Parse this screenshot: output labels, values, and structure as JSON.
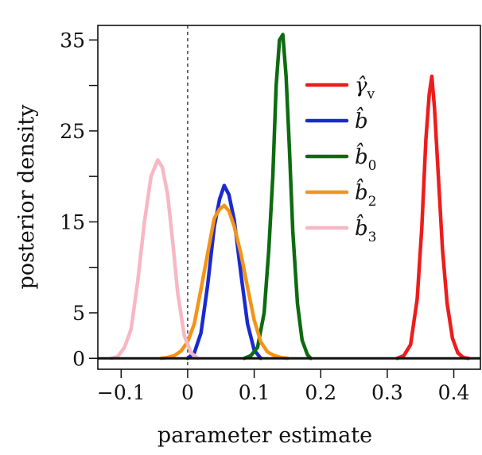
{
  "chart_data": {
    "type": "line",
    "title": "",
    "xlabel": "parameter estimate",
    "ylabel": "posterior density",
    "xlim": [
      -0.135,
      0.44
    ],
    "ylim": [
      -1.2,
      36.6
    ],
    "xticks": [
      -0.1,
      0,
      0.1,
      0.2,
      0.3,
      0.4
    ],
    "xtick_labels": [
      "−0.1",
      "0",
      "0.1",
      "0.2",
      "0.3",
      "0.4"
    ],
    "yticks": [
      0,
      5,
      15,
      25,
      35
    ],
    "ytick_labels": [
      "0",
      "5",
      "15",
      "25",
      "35"
    ],
    "y_minor_ticks": [
      10,
      20,
      30
    ],
    "grid": false,
    "reference_lines": [
      {
        "axis": "x",
        "value": 0,
        "style": "dashed"
      },
      {
        "axis": "y",
        "value": 0,
        "style": "solid"
      }
    ],
    "legend": {
      "position": "top-right",
      "entries": [
        {
          "main": "γ̂",
          "sub": "v",
          "color": "#ee1c1c"
        },
        {
          "main": "b̂",
          "sub": "",
          "color": "#1a2ad0"
        },
        {
          "main": "b̂",
          "sub": "0",
          "color": "#0d6b10"
        },
        {
          "main": "b̂",
          "sub": "2",
          "color": "#f39418"
        },
        {
          "main": "b̂",
          "sub": "3",
          "color": "#f7b7c4"
        }
      ]
    },
    "series": [
      {
        "key": "gamma_v",
        "color": "#ee1c1c",
        "x": [
          0.315,
          0.325,
          0.335,
          0.345,
          0.352,
          0.358,
          0.363,
          0.367,
          0.371,
          0.376,
          0.383,
          0.39,
          0.398,
          0.406,
          0.414,
          0.422
        ],
        "y": [
          0,
          0.3,
          1.5,
          6.5,
          14.5,
          24,
          29,
          31,
          27.5,
          21,
          12,
          6,
          2.2,
          0.6,
          0.1,
          0
        ]
      },
      {
        "key": "b",
        "color": "#1a2ad0",
        "x": [
          0.0,
          0.01,
          0.02,
          0.03,
          0.04,
          0.048,
          0.055,
          0.062,
          0.07,
          0.08,
          0.09,
          0.1,
          0.11
        ],
        "y": [
          0,
          0.6,
          2.8,
          8,
          14.5,
          17.5,
          19,
          18,
          15.2,
          9.3,
          3.8,
          0.9,
          0
        ]
      },
      {
        "key": "b0",
        "color": "#0d6b10",
        "x": [
          0.085,
          0.095,
          0.105,
          0.115,
          0.122,
          0.128,
          0.133,
          0.138,
          0.143,
          0.148,
          0.153,
          0.158,
          0.165,
          0.172,
          0.18,
          0.185
        ],
        "y": [
          0,
          0.3,
          1.2,
          5,
          12,
          20,
          30,
          35,
          35.6,
          31,
          23,
          14,
          6,
          2,
          0.4,
          0
        ]
      },
      {
        "key": "b2",
        "color": "#f39418",
        "x": [
          -0.04,
          -0.03,
          -0.02,
          -0.01,
          0.0,
          0.01,
          0.02,
          0.03,
          0.04,
          0.048,
          0.055,
          0.062,
          0.07,
          0.08,
          0.09,
          0.1,
          0.11,
          0.12,
          0.13,
          0.14,
          0.15
        ],
        "y": [
          0,
          0.1,
          0.3,
          0.8,
          1.8,
          3.8,
          7.6,
          11.5,
          15.4,
          16.4,
          16.8,
          16.2,
          14.5,
          11.5,
          7.8,
          4.2,
          1.8,
          0.7,
          0.3,
          0.1,
          0
        ]
      },
      {
        "key": "b3",
        "color": "#f7b7c4",
        "x": [
          -0.115,
          -0.105,
          -0.095,
          -0.085,
          -0.075,
          -0.065,
          -0.055,
          -0.045,
          -0.038,
          -0.03,
          -0.022,
          -0.015,
          -0.005,
          0.005,
          0.015
        ],
        "y": [
          0,
          0.2,
          1.2,
          3.2,
          8.5,
          15,
          20,
          21.8,
          21,
          18,
          12.5,
          7.2,
          2.5,
          0.6,
          0
        ]
      }
    ]
  }
}
